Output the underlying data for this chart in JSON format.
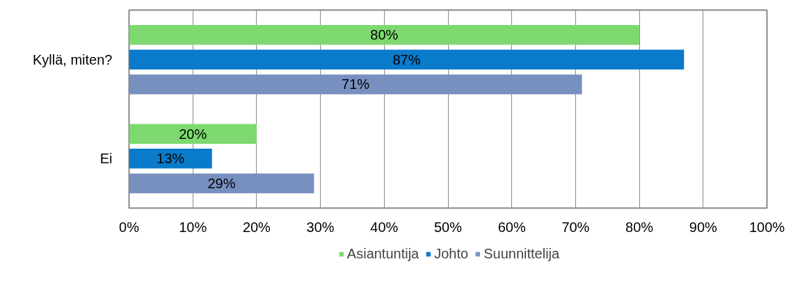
{
  "chart_data": {
    "type": "bar",
    "orientation": "horizontal",
    "categories": [
      "Kyllä, miten?",
      "Ei"
    ],
    "series": [
      {
        "name": "Asiantuntija",
        "color": "#7dd96f",
        "values": [
          80,
          20
        ],
        "value_labels": [
          "80%",
          "20%"
        ]
      },
      {
        "name": "Johto",
        "color": "#0a7acb",
        "values": [
          87,
          13
        ],
        "value_labels": [
          "87%",
          "13%"
        ]
      },
      {
        "name": "Suunnittelija",
        "color": "#7890c0",
        "values": [
          71,
          29
        ],
        "value_labels": [
          "71%",
          "29%"
        ]
      }
    ],
    "xlim": [
      0,
      100
    ],
    "xticks": [
      {
        "value": 0,
        "label": "0%"
      },
      {
        "value": 10,
        "label": "10%"
      },
      {
        "value": 20,
        "label": "20%"
      },
      {
        "value": 30,
        "label": "30%"
      },
      {
        "value": 40,
        "label": "40%"
      },
      {
        "value": 50,
        "label": "50%"
      },
      {
        "value": 60,
        "label": "60%"
      },
      {
        "value": 70,
        "label": "70%"
      },
      {
        "value": 80,
        "label": "80%"
      },
      {
        "value": 90,
        "label": "90%"
      },
      {
        "value": 100,
        "label": "100%"
      }
    ],
    "grid": "x",
    "legend": "bottom"
  }
}
